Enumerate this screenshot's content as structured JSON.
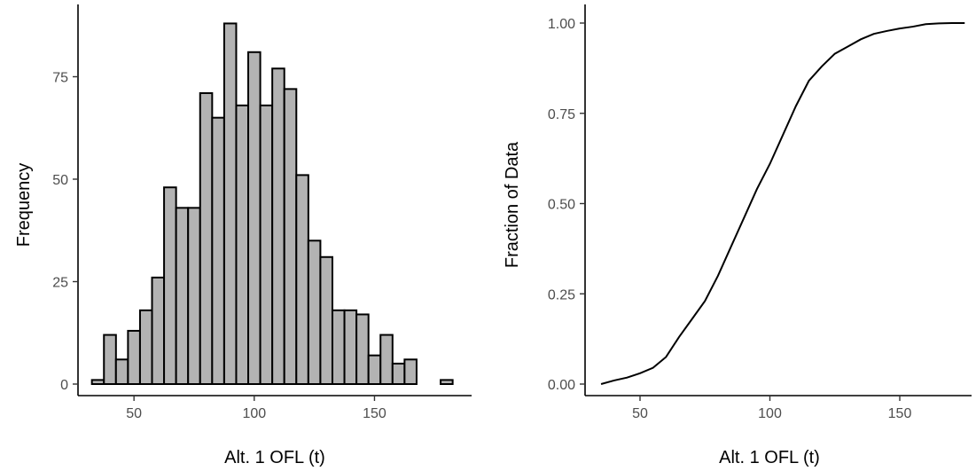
{
  "chart_data": [
    {
      "type": "bar",
      "subtype": "histogram",
      "xlabel": "Alt. 1 OFL (t)",
      "ylabel": "Frequency",
      "xlim": [
        30,
        180
      ],
      "ylim": [
        0,
        90
      ],
      "xticks": [
        50,
        100,
        150
      ],
      "yticks": [
        0,
        25,
        50,
        75
      ],
      "bin_width": 5,
      "bins": [
        {
          "x": 35,
          "count": 1
        },
        {
          "x": 40,
          "count": 12
        },
        {
          "x": 45,
          "count": 6
        },
        {
          "x": 50,
          "count": 13
        },
        {
          "x": 55,
          "count": 18
        },
        {
          "x": 60,
          "count": 26
        },
        {
          "x": 65,
          "count": 48
        },
        {
          "x": 70,
          "count": 43
        },
        {
          "x": 75,
          "count": 43
        },
        {
          "x": 80,
          "count": 71
        },
        {
          "x": 85,
          "count": 65
        },
        {
          "x": 90,
          "count": 88
        },
        {
          "x": 95,
          "count": 68
        },
        {
          "x": 100,
          "count": 81
        },
        {
          "x": 105,
          "count": 68
        },
        {
          "x": 110,
          "count": 77
        },
        {
          "x": 115,
          "count": 72
        },
        {
          "x": 120,
          "count": 51
        },
        {
          "x": 125,
          "count": 35
        },
        {
          "x": 130,
          "count": 31
        },
        {
          "x": 135,
          "count": 18
        },
        {
          "x": 140,
          "count": 18
        },
        {
          "x": 145,
          "count": 17
        },
        {
          "x": 150,
          "count": 7
        },
        {
          "x": 155,
          "count": 12
        },
        {
          "x": 160,
          "count": 5
        },
        {
          "x": 165,
          "count": 6
        },
        {
          "x": 170,
          "count": 0
        },
        {
          "x": 175,
          "count": 0
        },
        {
          "x": 180,
          "count": 1
        }
      ],
      "bar_fill": "#b3b3b3",
      "bar_stroke": "#000000",
      "grid": false
    },
    {
      "type": "line",
      "subtype": "ecdf",
      "xlabel": "Alt. 1 OFL (t)",
      "ylabel": "Fraction of Data",
      "xlim": [
        30,
        180
      ],
      "ylim": [
        0,
        1
      ],
      "xticks": [
        50,
        100,
        150
      ],
      "yticks": [
        0.0,
        0.25,
        0.5,
        0.75,
        1.0
      ],
      "ytick_labels": [
        "0.00",
        "0.25",
        "0.50",
        "0.75",
        "1.00"
      ],
      "points": [
        [
          35,
          0.0
        ],
        [
          40,
          0.01
        ],
        [
          45,
          0.018
        ],
        [
          50,
          0.03
        ],
        [
          55,
          0.045
        ],
        [
          60,
          0.075
        ],
        [
          65,
          0.13
        ],
        [
          70,
          0.18
        ],
        [
          75,
          0.23
        ],
        [
          80,
          0.3
        ],
        [
          85,
          0.38
        ],
        [
          90,
          0.46
        ],
        [
          95,
          0.54
        ],
        [
          100,
          0.61
        ],
        [
          105,
          0.69
        ],
        [
          110,
          0.77
        ],
        [
          115,
          0.84
        ],
        [
          120,
          0.88
        ],
        [
          125,
          0.915
        ],
        [
          130,
          0.935
        ],
        [
          135,
          0.955
        ],
        [
          140,
          0.97
        ],
        [
          145,
          0.978
        ],
        [
          150,
          0.985
        ],
        [
          155,
          0.99
        ],
        [
          160,
          0.997
        ],
        [
          165,
          0.999
        ],
        [
          170,
          1.0
        ],
        [
          175,
          1.0
        ]
      ],
      "line_color": "#000000",
      "grid": false
    }
  ]
}
